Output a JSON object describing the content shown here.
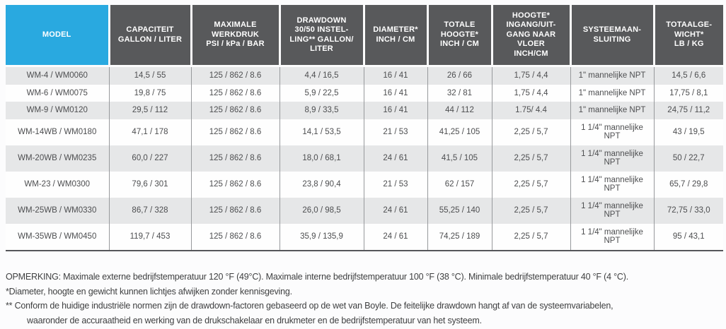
{
  "table": {
    "headers": [
      "MODEL",
      "CAPACITEIT\nGALLON / LITER",
      "MAXIMALE\nWERKDRUK\nPSI / kPa / BAR",
      "DRAWDOWN\n30/50 INSTEL-\nLING** GALLON/\nLITER",
      "DIAMETER*\nINCH / CM",
      "TOTALE\nHOOGTE*\nINCH / CM",
      "HOOGTE*\nINGANG/UIT-\nGANG NAAR\nVLOER\nINCH/CM",
      "SYSTEEMAAN-\nSLUITING",
      "TOTAALGE-\nWICHT*\nLB / KG"
    ],
    "rows": [
      [
        "WM-4 / WM0060",
        "14,5 / 55",
        "125 / 862 / 8.6",
        "4,4 / 16,5",
        "16 / 41",
        "26 / 66",
        "1,75 / 4,4",
        "1\" mannelijke NPT",
        "14,5 / 6,6"
      ],
      [
        "WM-6 / WM0075",
        "19,8 / 75",
        "125 / 862 / 8.6",
        "5,9 / 22,5",
        "16 / 41",
        "32 / 81",
        "1,75 / 4,4",
        "1\" mannelijke NPT",
        "17,75 / 8,1"
      ],
      [
        "WM-9 / WM0120",
        "29,5 / 112",
        "125 / 862 / 8.6",
        "8,9 / 33,5",
        "16 / 41",
        "44 / 112",
        "1.75/ 4.4",
        "1\" mannelijke NPT",
        "24,75 / 11,2"
      ],
      [
        "WM-14WB / WM0180",
        "47,1 / 178",
        "125 / 862 / 8.6",
        "14,1 / 53,5",
        "21 / 53",
        "41,25 / 105",
        "2,25 / 5,7",
        "1 1/4\" mannelijke NPT",
        "43 / 19,5"
      ],
      [
        "WM-20WB / WM0235",
        "60,0 / 227",
        "125 / 862 / 8.6",
        "18,0 / 68,1",
        "24 / 61",
        "41,5 / 105",
        "2,25 / 5,7",
        "1 1/4\" mannelijke NPT",
        "50 / 22,7"
      ],
      [
        "WM-23 / WM0300",
        "79,6 / 301",
        "125 / 862 / 8.6",
        "23,8 / 90,4",
        "21 / 53",
        "62 / 157",
        "2,25 / 5,7",
        "1 1/4\" mannelijke NPT",
        "65,7 / 29,8"
      ],
      [
        "WM-25WB / WM0330",
        "86,7 / 328",
        "125 / 862 / 8.6",
        "26,0 / 98,5",
        "24 / 61",
        "55,25 / 140",
        "2,25 / 5,7",
        "1 1/4\" mannelijke NPT",
        "72,75 / 33,0"
      ],
      [
        "WM-35WB / WM0450",
        "119,7 / 453",
        "125 / 862 / 8.6",
        "35,9 / 135,9",
        "24 / 61",
        "74,25 / 189",
        "2,25 / 5,7",
        "1 1/4\" mannelijke NPT",
        "95 / 43,1"
      ]
    ]
  },
  "footnotes": [
    "OPMERKING: Maximale externe bedrijfstemperatuur 120 °F (49°C). Maximale interne bedrijfstemperatuur 100 °F (38 °C). Minimale bedrijfstemperatuur 40 °F (4 °C).",
    "*Diameter, hoogte en gewicht kunnen lichtjes afwijken zonder kennisgeving.",
    "** Conform de huidige industriële normen zijn de drawdown-factoren gebaseerd op de wet van Boyle. De feitelijke drawdown hangt af van de systeemvariabelen,\nwaaronder de accuraatheid en werking van de drukschakelaar en drukmeter en de bedrijfstemperatuur van het systeem."
  ],
  "colors": {
    "accent_cyan": "#29A9E0",
    "header_gray": "#58595B",
    "row_stripe_gray": "#E6E7E8",
    "body_text": "#4D4E50"
  }
}
